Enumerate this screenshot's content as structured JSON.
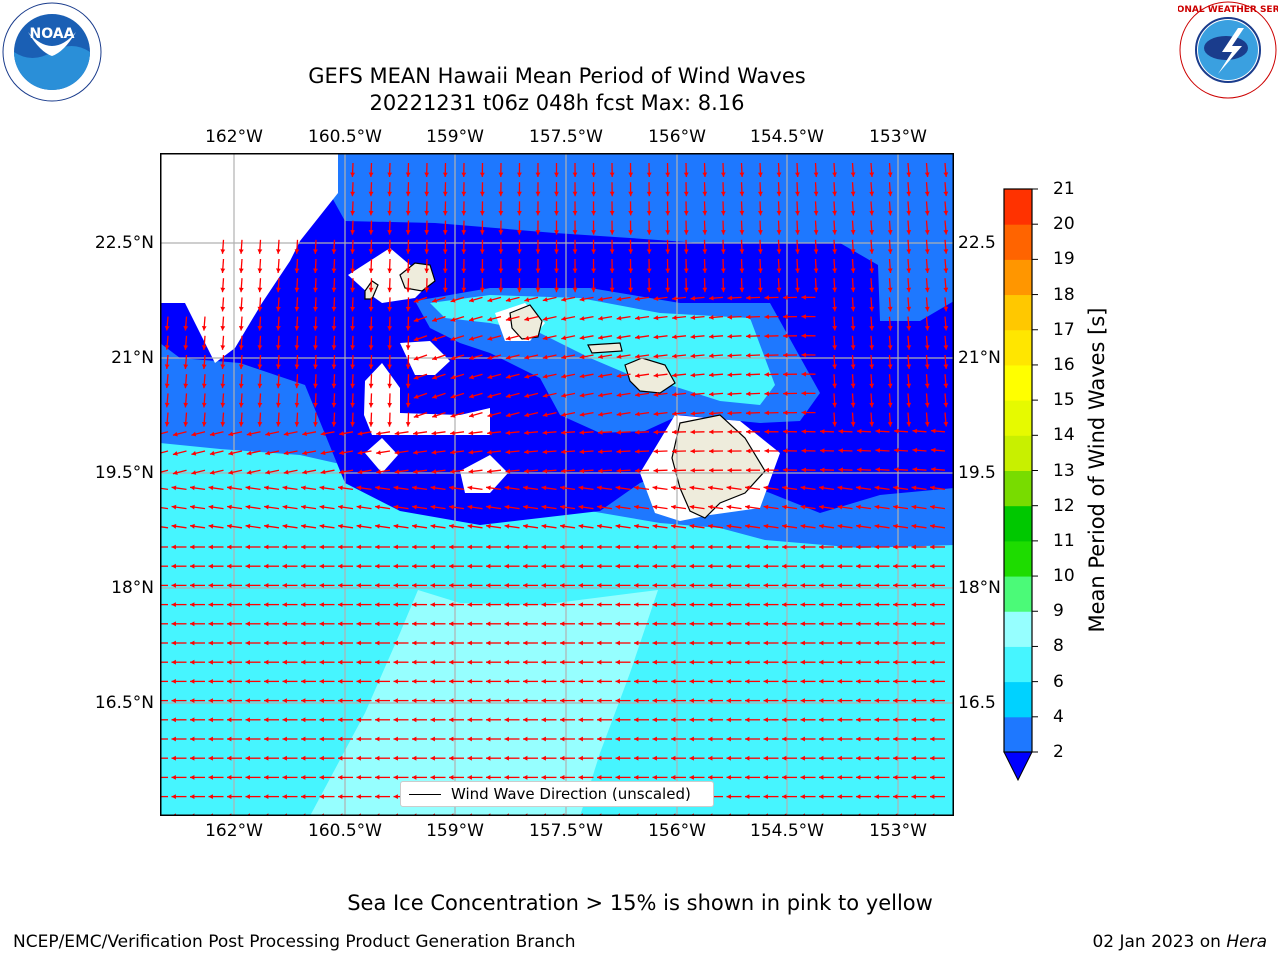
{
  "title": {
    "line1": "GEFS MEAN Hawaii Mean Period of Wind Waves",
    "line2": "20221231 t06z 048h fcst   Max: 8.16"
  },
  "map": {
    "lon_range": [
      -163.0,
      -152.25
    ],
    "lat_range": [
      15.0,
      23.7
    ],
    "lon_ticks": [
      "162°W",
      "160.5°W",
      "159°W",
      "157.5°W",
      "156°W",
      "154.5°W",
      "153°W"
    ],
    "lat_ticks": [
      "22.5°N",
      "21°N",
      "19.5°N",
      "18°N",
      "16.5°N"
    ],
    "right_lat_ticks": [
      "22.5",
      "21°N",
      "19.5",
      "18°N",
      "16.5"
    ],
    "grid": true,
    "vector_field": "Wind Wave Direction (unscaled)",
    "vector_color": "#ff0000"
  },
  "colorbar": {
    "label": "Mean Period of Wind Waves [s]",
    "tick_labels": [
      "2",
      "4",
      "6",
      "8",
      "9",
      "10",
      "11",
      "12",
      "13",
      "14",
      "15",
      "16",
      "17",
      "18",
      "19",
      "20",
      "21"
    ],
    "colors": [
      "#1e78ff",
      "#00d2ff",
      "#46f5ff",
      "#96ffff",
      "#4bfa78",
      "#1edc00",
      "#00c800",
      "#78dc00",
      "#c8f000",
      "#e6fa00",
      "#ffff00",
      "#ffe600",
      "#ffc800",
      "#ff9600",
      "#ff6400",
      "#ff3200",
      "#ff0000"
    ],
    "extend_color": "#0000ff"
  },
  "legend": {
    "label": "Wind Wave Direction (unscaled)"
  },
  "footer": {
    "note": "Sea Ice Concentration > 15% is shown in pink to yellow",
    "left": "NCEP/EMC/Verification Post Processing Product Generation Branch",
    "right_date": "02 Jan 2023 on ",
    "right_host": "Hera"
  },
  "logos": {
    "noaa_text": "NOAA",
    "nws_text": "NATIONAL WEATHER SERVICE"
  }
}
